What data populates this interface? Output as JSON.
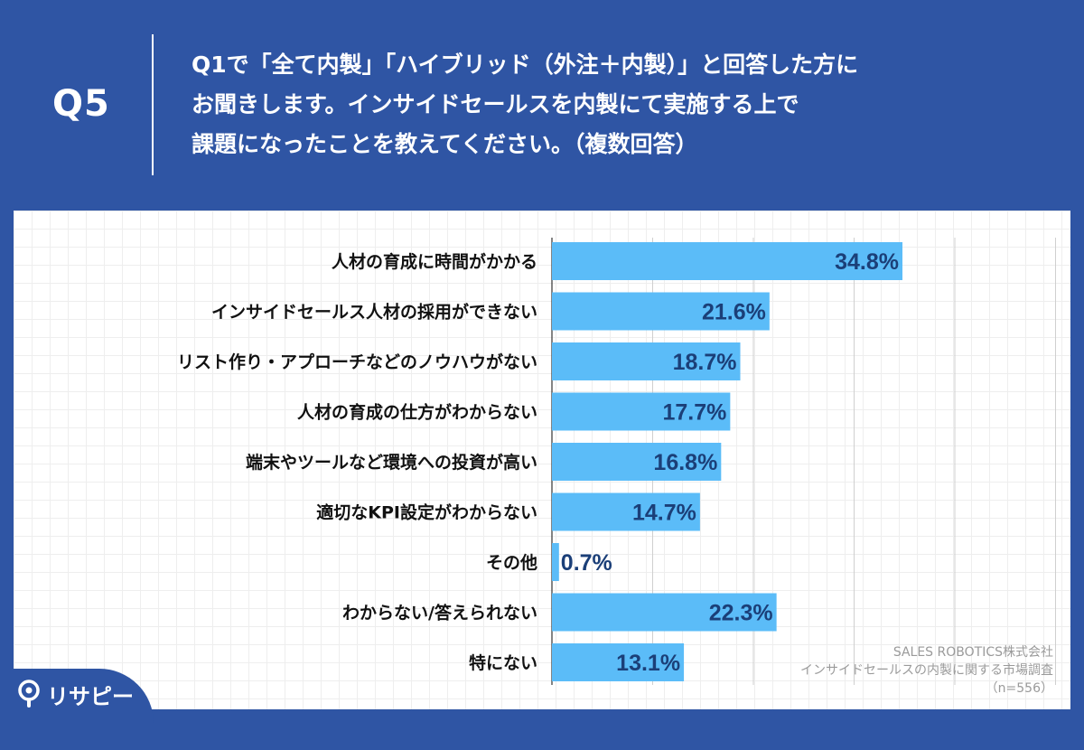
{
  "question": {
    "number": "Q5",
    "lines": [
      "Q1で「全て内製」「ハイブリッド（外注＋内製）」と回答した方に",
      "お聞きします。インサイドセールスを内製にて実施する上で",
      "課題になったことを教えてください。（複数回答）"
    ]
  },
  "chart_data": {
    "type": "bar",
    "orientation": "horizontal",
    "categories": [
      "人材の育成に時間がかかる",
      "インサイドセールス人材の採用ができない",
      "リスト作り・アプローチなどのノウハウがない",
      "人材の育成の仕方がわからない",
      "端末やツールなど環境への投資が高い",
      "適切なKPI設定がわからない",
      "その他",
      "わからない/答えられない",
      "特にない"
    ],
    "values": [
      34.8,
      21.6,
      18.7,
      17.7,
      16.8,
      14.7,
      0.7,
      22.3,
      13.1
    ],
    "value_labels": [
      "34.8%",
      "21.6%",
      "18.7%",
      "17.7%",
      "16.8%",
      "14.7%",
      "0.7%",
      "22.3%",
      "13.1%"
    ],
    "xlim": [
      0,
      50
    ],
    "grid": true,
    "bar_color": "#5bbcf8",
    "value_label_color": "#1b3f78"
  },
  "source": {
    "company": "SALES ROBOTICS株式会社",
    "survey": "インサイドセールスの内製に関する市場調査",
    "sample": "（n=556）"
  },
  "brand": {
    "name": "リサピー",
    "icon": "pin-icon"
  },
  "colors": {
    "background": "#2f55a4",
    "bar": "#5bbcf8"
  }
}
